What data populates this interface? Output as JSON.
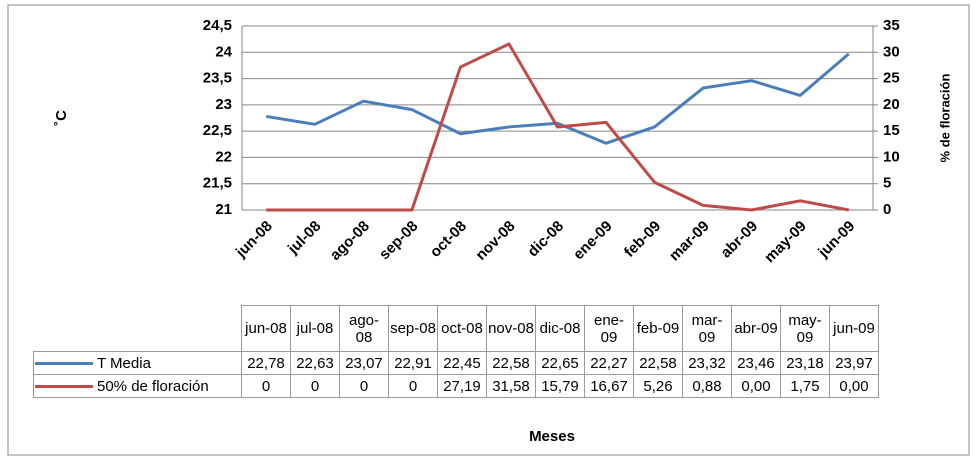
{
  "chart_data": {
    "type": "line",
    "categories": [
      "jun-08",
      "jul-08",
      "ago-08",
      "sep-08",
      "oct-08",
      "nov-08",
      "dic-08",
      "ene-09",
      "feb-09",
      "mar-09",
      "abr-09",
      "may-09",
      "jun-09"
    ],
    "series": [
      {
        "name": "T Media",
        "color": "#4a7ebb",
        "axis": "y",
        "values": [
          22.78,
          22.63,
          23.07,
          22.91,
          22.45,
          22.58,
          22.65,
          22.27,
          22.58,
          23.32,
          23.46,
          23.18,
          23.97
        ],
        "value_labels": [
          "22,78",
          "22,63",
          "23,07",
          "22,91",
          "22,45",
          "22,58",
          "22,65",
          "22,27",
          "22,58",
          "23,32",
          "23,46",
          "23,18",
          "23,97"
        ]
      },
      {
        "name": "50% de floración",
        "color": "#be4b48",
        "axis": "y2",
        "values": [
          0,
          0,
          0,
          0,
          27.19,
          31.58,
          15.79,
          16.67,
          5.26,
          0.88,
          0,
          1.75,
          0
        ],
        "value_labels": [
          "0",
          "0",
          "0",
          "0",
          "27,19",
          "31,58",
          "15,79",
          "16,67",
          "5,26",
          "0,88",
          "0,00",
          "1,75",
          "0,00"
        ]
      }
    ],
    "ylabel": "˚C",
    "y2label": "% de floración",
    "xlabel": "Meses",
    "ylim": [
      21,
      24.5
    ],
    "yticks": [
      21,
      {
        "value": 21.5,
        "label": "21,5"
      },
      22,
      {
        "value": 22.5,
        "label": "22,5"
      },
      23,
      {
        "value": 23.5,
        "label": "23,5"
      },
      24,
      {
        "value": 24.5,
        "label": "24,5"
      }
    ],
    "y2lim": [
      0,
      35
    ],
    "y2ticks": [
      0,
      5,
      10,
      15,
      20,
      25,
      30,
      35
    ],
    "grid": true
  }
}
